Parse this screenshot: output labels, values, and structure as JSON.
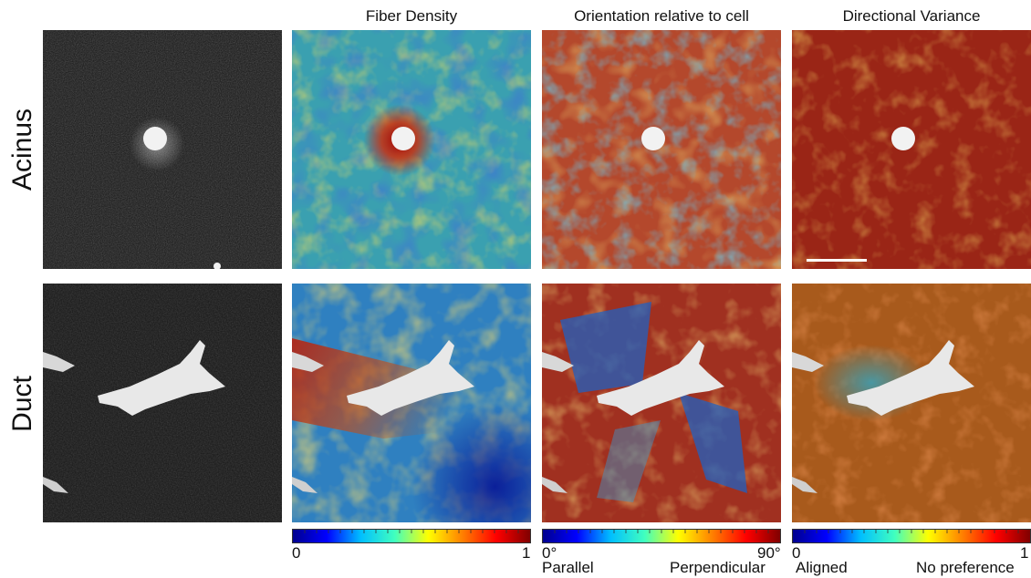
{
  "columns": [
    {
      "title": ""
    },
    {
      "title": "Fiber Density"
    },
    {
      "title": "Orientation relative to cell"
    },
    {
      "title": "Directional Variance"
    }
  ],
  "rows": [
    {
      "label": "Acinus"
    },
    {
      "label": "Duct"
    }
  ],
  "colorbars": [
    {
      "min_label": "0",
      "max_label": "1",
      "left_caption": "",
      "right_caption": ""
    },
    {
      "min_label": "0°",
      "max_label": "90°",
      "left_caption": "Parallel",
      "right_caption": "Perpendicular"
    },
    {
      "min_label": "0",
      "max_label": "1",
      "left_caption": "Aligned",
      "right_caption": "No preference"
    }
  ],
  "colormap": {
    "name": "jet",
    "stops": [
      "#00008f",
      "#0000ff",
      "#00bfff",
      "#40ffbf",
      "#ffff00",
      "#ff8000",
      "#ff0000",
      "#800000"
    ]
  },
  "panel_colors": {
    "background_dark": "#141414",
    "cell_white": "#f2f2f2",
    "acinus_density_base": "#3aa0b0",
    "acinus_density_hot": "#b01010",
    "acinus_orientation_base": "#b4482c",
    "acinus_orientation_cool": "#2a8fb5",
    "acinus_variance_base": "#9a2516",
    "duct_density_base": "#2f80c0",
    "duct_density_hot": "#b52010",
    "duct_orientation_base": "#a03020",
    "duct_orientation_cool": "#2060c0",
    "duct_variance_base": "#a85a1c",
    "duct_variance_cool": "#3d9db0"
  }
}
